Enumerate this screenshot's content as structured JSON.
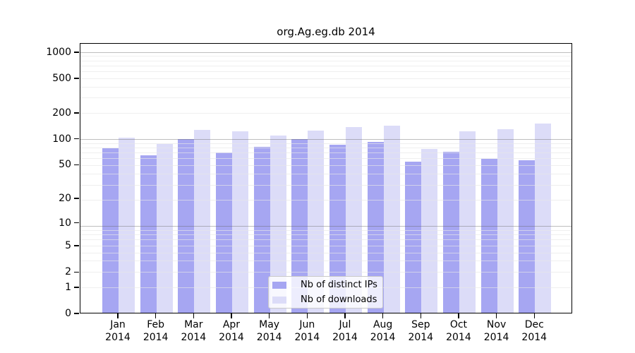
{
  "title": "org.Ag.eg.db 2014",
  "chart_data": {
    "type": "bar",
    "title": "org.Ag.eg.db 2014",
    "scale": "log10(1+y)",
    "categories": [
      "Jan",
      "Feb",
      "Mar",
      "Apr",
      "May",
      "Jun",
      "Jul",
      "Aug",
      "Sep",
      "Oct",
      "Nov",
      "Dec"
    ],
    "year": "2014",
    "series": [
      {
        "name": "Nb of distinct IPs",
        "color": "#a6a6f2",
        "values": [
          76,
          63,
          98,
          68,
          79,
          98,
          84,
          90,
          53,
          70,
          58,
          55
        ]
      },
      {
        "name": "Nb of downloads",
        "color": "#dcdcf8",
        "values": [
          101,
          85,
          126,
          121,
          107,
          123,
          134,
          141,
          75,
          121,
          127,
          147
        ]
      }
    ],
    "y_ticks": [
      1000,
      500,
      200,
      100,
      50,
      20,
      10,
      5,
      2,
      1,
      0
    ],
    "ylim": [
      0,
      1275
    ],
    "grid": "log decades: major at 10/100/1000, minor at 2-9 per decade",
    "legend_position": "inside-bottom-center"
  },
  "legend": {
    "items": [
      {
        "label": "Nb of distinct IPs",
        "color": "#a6a6f2"
      },
      {
        "label": "Nb of downloads",
        "color": "#dcdcf8"
      }
    ]
  },
  "colors": {
    "bar_ips": "#a6a6f2",
    "bar_downloads": "#dcdcf8",
    "grid_major": "#b4b4b4",
    "grid_minor": "#ececec",
    "frame": "#000000",
    "background": "#ffffff",
    "text": "#000000"
  }
}
